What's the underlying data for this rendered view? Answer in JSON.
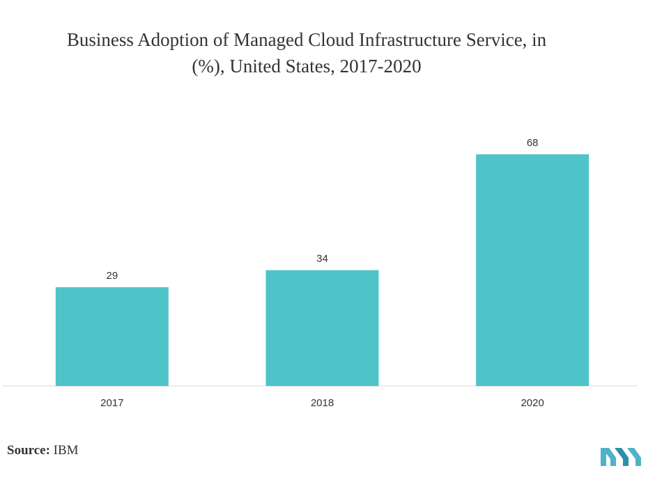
{
  "chart_data": {
    "type": "bar",
    "title": {
      "line1": "Business Adoption of Managed Cloud Infrastructure Service, in",
      "line2": "(%), United States, 2017-2020"
    },
    "categories": [
      "2017",
      "2018",
      "2020"
    ],
    "values": [
      29,
      34,
      68
    ],
    "xlabel": "",
    "ylabel": "",
    "ylim": [
      0,
      70
    ],
    "grid": false,
    "legend": "none",
    "bar_color": "#4fc4c8",
    "axis_color": "#d9d9d9"
  },
  "footer": {
    "source_label": "Source:",
    "source_value": "IBM"
  },
  "logo": {
    "icon": "mordor-intelligence-logo-icon",
    "color": "#4fb3c7"
  }
}
